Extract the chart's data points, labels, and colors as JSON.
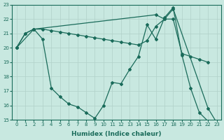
{
  "xlabel": "Humidex (Indice chaleur)",
  "background_color": "#c8e8e0",
  "grid_color": "#b0d0c8",
  "line_color": "#1a6b5a",
  "xlim": [
    -0.5,
    23.5
  ],
  "ylim": [
    15,
    23
  ],
  "xticks": [
    0,
    1,
    2,
    3,
    4,
    5,
    6,
    7,
    8,
    9,
    10,
    11,
    12,
    13,
    14,
    15,
    16,
    17,
    18,
    19,
    20,
    21,
    22,
    23
  ],
  "yticks": [
    15,
    16,
    17,
    18,
    19,
    20,
    21,
    22,
    23
  ],
  "s1x": [
    0,
    1,
    2,
    3,
    4,
    5,
    6,
    7,
    8,
    9,
    10,
    11,
    12,
    13,
    14,
    15,
    16,
    17,
    18,
    19,
    20,
    21,
    22,
    23
  ],
  "s1y": [
    20.0,
    21.0,
    21.3,
    20.6,
    17.2,
    16.6,
    16.1,
    15.9,
    15.5,
    15.1,
    16.0,
    17.6,
    17.5,
    18.5,
    19.4,
    21.6,
    20.6,
    22.1,
    22.8,
    19.5,
    17.2,
    15.5,
    14.9,
    14.8
  ],
  "s2x": [
    0,
    1,
    2,
    3,
    4,
    5,
    6,
    7,
    8,
    9,
    10,
    11,
    12,
    13,
    14,
    15,
    16,
    17,
    18,
    19,
    20,
    21,
    22
  ],
  "s2y": [
    20.0,
    21.0,
    21.3,
    21.3,
    21.2,
    21.1,
    21.0,
    20.9,
    20.8,
    20.7,
    20.6,
    20.5,
    20.4,
    20.3,
    20.2,
    20.5,
    21.5,
    22.0,
    22.0,
    19.6,
    19.4,
    19.2,
    19.0
  ],
  "s3x": [
    0,
    2,
    16,
    17,
    18,
    22,
    23
  ],
  "s3y": [
    20.0,
    21.3,
    22.3,
    22.0,
    22.7,
    15.8,
    14.8
  ]
}
